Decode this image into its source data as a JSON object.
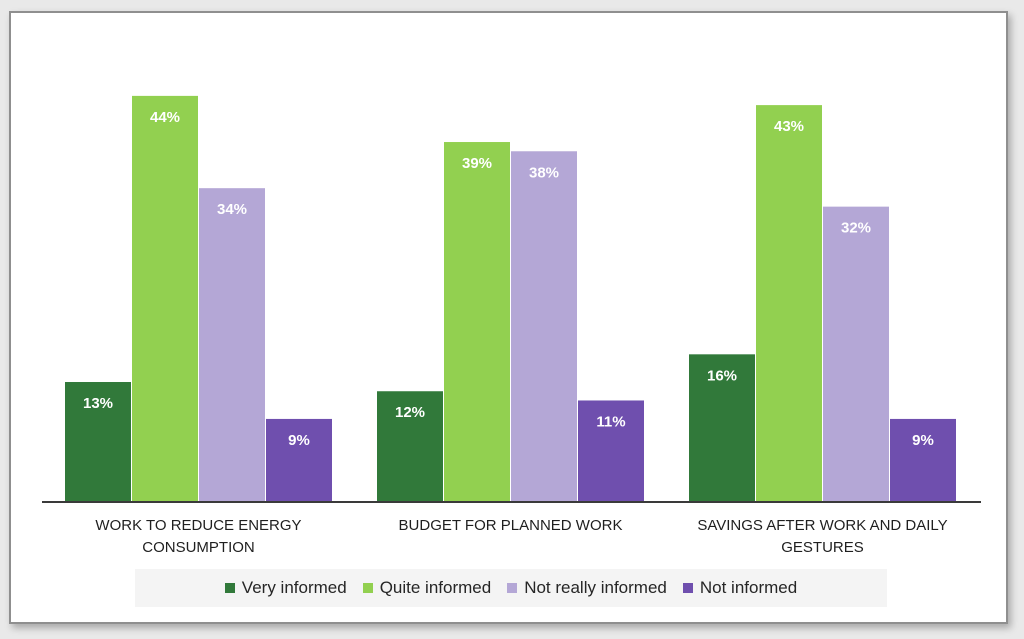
{
  "chart_data": {
    "type": "bar",
    "title": "",
    "xlabel": "",
    "ylabel": "",
    "ylim": [
      0,
      45
    ],
    "grid": false,
    "legend_position": "bottom",
    "categories": [
      [
        "WORK TO REDUCE ENERGY",
        "CONSUMPTION"
      ],
      [
        "BUDGET FOR PLANNED WORK"
      ],
      [
        "SAVINGS AFTER WORK AND DAILY",
        "GESTURES"
      ]
    ],
    "series": [
      {
        "name": "Very informed",
        "color": "#31793a",
        "values": [
          13,
          12,
          16
        ],
        "labels": [
          "13%",
          "12%",
          "16%"
        ]
      },
      {
        "name": "Quite informed",
        "color": "#92d050",
        "values": [
          44,
          39,
          43
        ],
        "labels": [
          "44%",
          "39%",
          "43%"
        ]
      },
      {
        "name": "Not really informed",
        "color": "#b4a7d6",
        "values": [
          34,
          38,
          32
        ],
        "labels": [
          "34%",
          "38%",
          "32%"
        ]
      },
      {
        "name": "Not informed",
        "color": "#6f4fae",
        "values": [
          9,
          11,
          9
        ],
        "labels": [
          "9%",
          "11%",
          "9%"
        ]
      }
    ]
  }
}
